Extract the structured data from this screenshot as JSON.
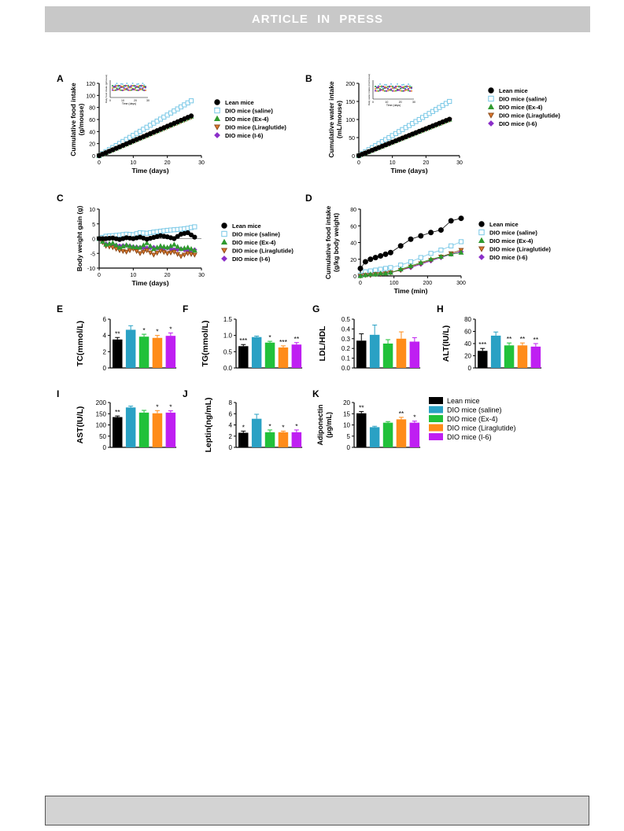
{
  "header": {
    "banner": "ARTICLE  IN  PRESS"
  },
  "legend_series": [
    "Lean mice",
    "DIO mice (saline)",
    "DIO mice (Ex-4)",
    "DIO mice (Liraglutide)",
    "DIO mice (I-6)"
  ],
  "bar_legend": [
    "Lean mice",
    "DIO mice (saline)",
    "DIO mice (Ex-4)",
    "DIO mice (Liraglutide)",
    "DIO mice (I-6)"
  ],
  "colors": {
    "lean": "#000000",
    "saline": "#2aa1c4",
    "ex4": "#21c13a",
    "lira": "#ff8c1a",
    "i6": "#bf1ff2",
    "saline_marker": "#77c7e6",
    "ex4_marker": "#2f9a2f",
    "lira_marker": "#e07a2e",
    "i6_marker": "#8b2fc9"
  },
  "chart_data": [
    {
      "panel": "A",
      "type": "scatter",
      "ylabel": "Cumulative food intake\n(g/mouse)",
      "xlabel": "Time (days)",
      "xlim": [
        0,
        30
      ],
      "ylim": [
        0,
        120
      ],
      "xticks": [
        0,
        10,
        20,
        30
      ],
      "yticks": [
        0,
        20,
        40,
        60,
        80,
        100,
        120
      ],
      "series": [
        {
          "name": "Lean mice",
          "x_end": 27,
          "y_end": 66
        },
        {
          "name": "DIO mice (saline)",
          "x_end": 27,
          "y_end": 91
        },
        {
          "name": "DIO mice (Ex-4)",
          "x_end": 27,
          "y_end": 65
        },
        {
          "name": "DIO mice (Liraglutide)",
          "x_end": 27,
          "y_end": 64
        },
        {
          "name": "DIO mice (I-6)",
          "x_end": 27,
          "y_end": 65
        }
      ],
      "inset": {
        "ylabel": "Daily food intake (g/mouse)",
        "xlabel": "Time (days)",
        "xticks": [
          0,
          10,
          20,
          30
        ]
      }
    },
    {
      "panel": "B",
      "type": "scatter",
      "ylabel": "Cumulative water intake\n(mL/mouse)",
      "xlabel": "Time (days)",
      "xlim": [
        0,
        30
      ],
      "ylim": [
        0,
        200
      ],
      "xticks": [
        0,
        10,
        20,
        30
      ],
      "yticks": [
        0,
        50,
        100,
        150,
        200
      ],
      "series": [
        {
          "name": "Lean mice",
          "x_end": 27,
          "y_end": 101
        },
        {
          "name": "DIO mice (saline)",
          "x_end": 27,
          "y_end": 150
        },
        {
          "name": "DIO mice (Ex-4)",
          "x_end": 27,
          "y_end": 100
        },
        {
          "name": "DIO mice (Liraglutide)",
          "x_end": 27,
          "y_end": 99
        },
        {
          "name": "DIO mice (I-6)",
          "x_end": 27,
          "y_end": 100
        }
      ],
      "inset": {
        "ylabel": "Daily water intake (mL/mouse)",
        "xlabel": "Time (days)",
        "xticks": [
          0,
          10,
          20,
          30
        ]
      }
    },
    {
      "panel": "C",
      "type": "scatter",
      "ylabel": "Body weight gain (g)",
      "xlabel": "Time (days)",
      "xlim": [
        0,
        30
      ],
      "ylim": [
        -10,
        10
      ],
      "xticks": [
        0,
        10,
        20,
        30
      ],
      "yticks": [
        -10,
        -5,
        0,
        5,
        10
      ],
      "series": [
        {
          "name": "Lean mice",
          "x": [
            0,
            2,
            4,
            6,
            8,
            10,
            12,
            14,
            16,
            18,
            20,
            22,
            24,
            26,
            28
          ],
          "y": [
            0,
            0,
            0.2,
            -0.3,
            0.3,
            0,
            0.5,
            -0.2,
            0.4,
            1,
            0.6,
            0,
            1.5,
            2,
            0.5
          ]
        },
        {
          "name": "DIO mice (saline)",
          "x": [
            0,
            2,
            4,
            6,
            8,
            10,
            12,
            14,
            16,
            18,
            20,
            22,
            24,
            26,
            28
          ],
          "y": [
            0,
            0.8,
            1,
            1.2,
            1.5,
            1.3,
            2,
            1.8,
            2.2,
            2.5,
            2.8,
            3,
            3.2,
            3.5,
            4
          ]
        },
        {
          "name": "DIO mice (Ex-4)",
          "x": [
            0,
            2,
            4,
            6,
            8,
            10,
            12,
            14,
            16,
            18,
            20,
            22,
            24,
            26,
            28
          ],
          "y": [
            0,
            -2,
            -1.5,
            -3,
            -2.2,
            -2.8,
            -3,
            -1.5,
            -3.5,
            -2.5,
            -3,
            -2,
            -3.5,
            -3,
            -4
          ]
        },
        {
          "name": "DIO mice (Liraglutide)",
          "x": [
            0,
            2,
            4,
            6,
            8,
            10,
            12,
            14,
            16,
            18,
            20,
            22,
            24,
            26,
            28
          ],
          "y": [
            0,
            -2.5,
            -3,
            -4,
            -4.5,
            -3.5,
            -5,
            -4,
            -5.5,
            -4.2,
            -5,
            -4.5,
            -6,
            -5,
            -5.5
          ]
        },
        {
          "name": "DIO mice (I-6)",
          "x": [
            0,
            2,
            4,
            6,
            8,
            10,
            12,
            14,
            16,
            18,
            20,
            22,
            24,
            26,
            28
          ],
          "y": [
            0,
            -1.8,
            -2,
            -2.5,
            -2.3,
            -2.8,
            -3,
            -3.2,
            -3,
            -3.5,
            -3.2,
            -3.8,
            -3.5,
            -4,
            -3.8
          ]
        }
      ]
    },
    {
      "panel": "D",
      "type": "line",
      "ylabel": "Cumulative food intake\n(g/kg body weight)",
      "xlabel": "Time (min)",
      "xlim": [
        0,
        300
      ],
      "ylim": [
        0,
        80
      ],
      "xticks": [
        0,
        100,
        200,
        300
      ],
      "yticks": [
        0,
        20,
        40,
        60,
        80
      ],
      "series": [
        {
          "name": "Lean mice",
          "x": [
            0,
            15,
            30,
            45,
            60,
            75,
            90,
            120,
            150,
            180,
            210,
            240,
            270,
            300
          ],
          "y": [
            9,
            17,
            20,
            22,
            24,
            26,
            28,
            36,
            44,
            48,
            52,
            55,
            66,
            69
          ]
        },
        {
          "name": "DIO mice (saline)",
          "x": [
            0,
            15,
            30,
            45,
            60,
            75,
            90,
            120,
            150,
            180,
            210,
            240,
            270,
            300
          ],
          "y": [
            1,
            5,
            6,
            7,
            8,
            9,
            10,
            13,
            17,
            22,
            27,
            31,
            36,
            41
          ]
        },
        {
          "name": "DIO mice (Ex-4)",
          "x": [
            0,
            15,
            30,
            45,
            60,
            75,
            90,
            120,
            150,
            180,
            210,
            240,
            270,
            300
          ],
          "y": [
            0,
            1,
            2,
            2,
            3,
            3,
            4,
            8,
            12,
            16,
            20,
            23,
            26,
            28
          ]
        },
        {
          "name": "DIO mice (Liraglutide)",
          "x": [
            0,
            15,
            30,
            45,
            60,
            75,
            90,
            120,
            150,
            180,
            210,
            240,
            270,
            300
          ],
          "y": [
            0,
            1,
            1,
            2,
            2,
            3,
            4,
            7,
            11,
            15,
            19,
            23,
            27,
            31
          ]
        },
        {
          "name": "DIO mice (I-6)",
          "x": [
            0,
            15,
            30,
            45,
            60,
            75,
            90,
            120,
            150,
            180,
            210,
            240,
            270,
            300
          ],
          "y": [
            0,
            1,
            1,
            2,
            2,
            3,
            4,
            7,
            10,
            14,
            18,
            22,
            26,
            29
          ]
        }
      ]
    },
    {
      "panel": "E",
      "type": "bar",
      "ylabel": "TC(mmol/L)",
      "ylim": [
        0,
        6
      ],
      "yticks": [
        0,
        2,
        4,
        6
      ],
      "yticklabels": [
        "0",
        "2",
        "4",
        "6"
      ],
      "values": [
        3.5,
        4.7,
        3.85,
        3.7,
        3.95
      ],
      "errors": [
        0.25,
        0.5,
        0.3,
        0.3,
        0.35
      ],
      "sig": [
        "**",
        "",
        "*",
        "*",
        "*"
      ]
    },
    {
      "panel": "F",
      "type": "bar",
      "ylabel": "TG(mmol/L)",
      "ylim": [
        0,
        1.5
      ],
      "yticks": [
        0,
        0.5,
        1.0,
        1.5
      ],
      "yticklabels": [
        "0.0",
        "0.5",
        "1.0",
        "1.5"
      ],
      "values": [
        0.67,
        0.95,
        0.78,
        0.63,
        0.72
      ],
      "errors": [
        0.05,
        0.03,
        0.04,
        0.05,
        0.06
      ],
      "sig": [
        "***",
        "",
        "*",
        "***",
        "**"
      ]
    },
    {
      "panel": "G",
      "type": "bar",
      "ylabel": "LDL/HDL",
      "ylim": [
        0,
        0.5
      ],
      "yticks": [
        0,
        0.1,
        0.2,
        0.3,
        0.4,
        0.5
      ],
      "yticklabels": [
        "0.0",
        "0.1",
        "0.2",
        "0.3",
        "0.4",
        "0.5"
      ],
      "values": [
        0.28,
        0.34,
        0.25,
        0.3,
        0.27
      ],
      "errors": [
        0.07,
        0.1,
        0.04,
        0.07,
        0.04
      ],
      "sig": [
        "",
        "",
        "",
        "",
        ""
      ]
    },
    {
      "panel": "H",
      "type": "bar",
      "ylabel": "ALT(IU/L)",
      "ylim": [
        0,
        80
      ],
      "yticks": [
        0,
        20,
        40,
        60,
        80
      ],
      "yticklabels": [
        "0",
        "20",
        "40",
        "60",
        "80"
      ],
      "values": [
        28,
        53,
        37,
        37,
        35
      ],
      "errors": [
        4,
        6,
        4,
        4,
        5
      ],
      "sig": [
        "***",
        "",
        "**",
        "**",
        "**"
      ]
    },
    {
      "panel": "I",
      "type": "bar",
      "ylabel": "AST(IU/L)",
      "ylim": [
        0,
        200
      ],
      "yticks": [
        0,
        50,
        100,
        150,
        200
      ],
      "yticklabels": [
        "0",
        "50",
        "100",
        "150",
        "200"
      ],
      "values": [
        135,
        178,
        155,
        152,
        155
      ],
      "errors": [
        5,
        6,
        10,
        12,
        8
      ],
      "sig": [
        "**",
        "",
        "",
        "*",
        "*"
      ]
    },
    {
      "panel": "J",
      "type": "bar",
      "ylabel": "Leptin(ng/mL)",
      "ylim": [
        0,
        8
      ],
      "yticks": [
        0,
        2,
        4,
        6,
        8
      ],
      "yticklabels": [
        "0",
        "2",
        "4",
        "6",
        "8"
      ],
      "values": [
        2.6,
        5.1,
        2.7,
        2.7,
        2.7
      ],
      "errors": [
        0.3,
        0.8,
        0.4,
        0.2,
        0.4
      ],
      "sig": [
        "*",
        "",
        "*",
        "*",
        "*"
      ]
    },
    {
      "panel": "K",
      "type": "bar",
      "ylabel": "Adiponectin\n(μg/mL)",
      "ylim": [
        0,
        20
      ],
      "yticks": [
        0,
        5,
        10,
        15,
        20
      ],
      "yticklabels": [
        "0",
        "5",
        "10",
        "15",
        "20"
      ],
      "values": [
        15.2,
        9,
        11,
        12.5,
        11
      ],
      "errors": [
        0.8,
        0.4,
        0.5,
        0.9,
        0.7
      ],
      "sig": [
        "**",
        "",
        "",
        "**",
        "*"
      ]
    }
  ],
  "panel_labels": [
    "A",
    "B",
    "C",
    "D",
    "E",
    "F",
    "G",
    "H",
    "I",
    "J",
    "K"
  ]
}
